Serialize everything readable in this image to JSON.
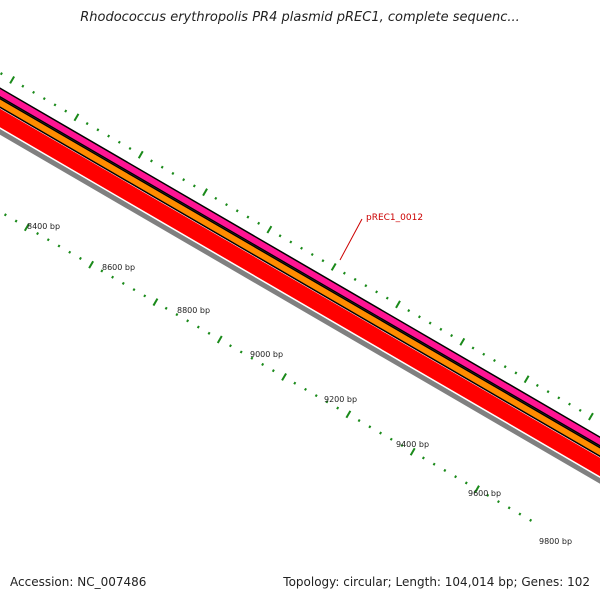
{
  "title": "Rhodococcus erythropolis PR4 plasmid pREC1, complete sequenc...",
  "footer": {
    "accession": "Accession: NC_007486",
    "summary": "Topology: circular; Length: 104,014 bp; Genes: 102"
  },
  "colors": {
    "tick": "#1a8a1a",
    "gene_label": "#cc0000",
    "feature_tracks": [
      "#ff1493",
      "#ff8c00",
      "#ff0000",
      "#808080"
    ]
  },
  "gene_label": "pREC1_0012",
  "bp_labels": [
    "8400 bp",
    "8600 bp",
    "8800 bp",
    "9000 bp",
    "9200 bp",
    "9400 bp",
    "9600 bp",
    "9800 bp"
  ]
}
